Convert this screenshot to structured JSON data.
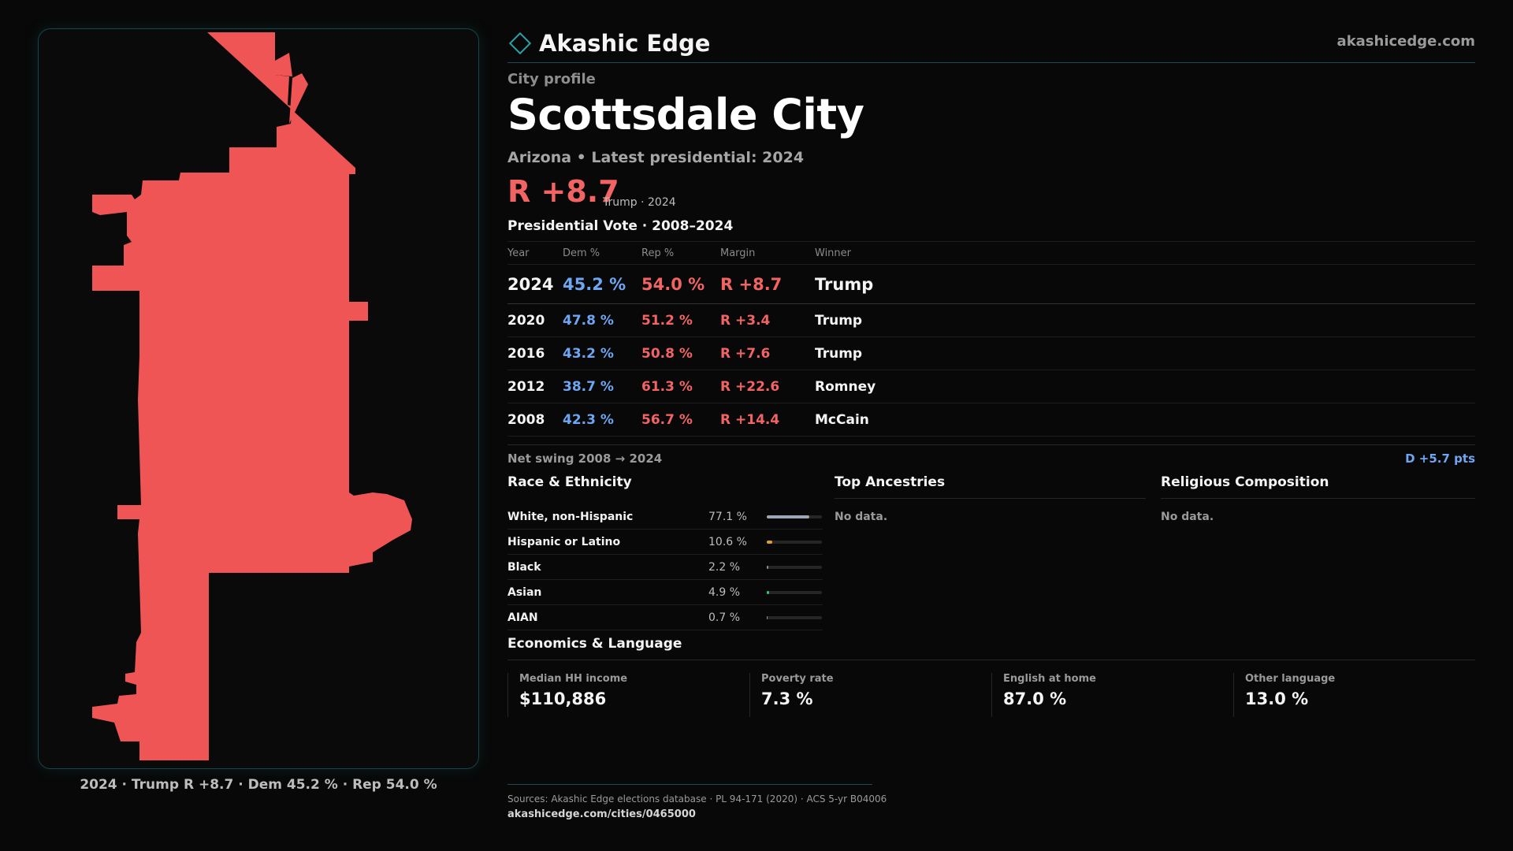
{
  "brand": {
    "name": "Akashic Edge",
    "site": "akashicedge.com",
    "icon": "diamond-icon",
    "accent": "#2aa3a8"
  },
  "profile": {
    "eyebrow": "City profile",
    "city": "Scottsdale City",
    "subtitle": "Arizona • Latest presidential: 2024",
    "margin": "R +8.7",
    "margin_note": "Trump · 2024"
  },
  "map": {
    "fill_color": "#f05555",
    "caption": "2024 · Trump R +8.7 · Dem 45.2 % · Rep 54.0 %"
  },
  "presidential": {
    "title": "Presidential Vote · 2008–2024",
    "headers": {
      "year": "Year",
      "dem": "Dem %",
      "rep": "Rep %",
      "margin": "Margin",
      "winner": "Winner"
    },
    "rows": [
      {
        "year": "2024",
        "dem": "45.2 %",
        "rep": "54.0 %",
        "margin": "R +8.7",
        "winner": "Trump"
      },
      {
        "year": "2020",
        "dem": "47.8 %",
        "rep": "51.2 %",
        "margin": "R +3.4",
        "winner": "Trump"
      },
      {
        "year": "2016",
        "dem": "43.2 %",
        "rep": "50.8 %",
        "margin": "R +7.6",
        "winner": "Trump"
      },
      {
        "year": "2012",
        "dem": "38.7 %",
        "rep": "61.3 %",
        "margin": "R +22.6",
        "winner": "Romney"
      },
      {
        "year": "2008",
        "dem": "42.3 %",
        "rep": "56.7 %",
        "margin": "R +14.4",
        "winner": "McCain"
      }
    ],
    "swing_label": "Net swing 2008 → 2024",
    "swing_value": "D +5.7 pts",
    "colors": {
      "dem": "#6ea6f2",
      "rep": "#f26464"
    }
  },
  "race": {
    "title": "Race & Ethnicity",
    "items": [
      {
        "label": "White, non-Hispanic",
        "pct": "77.1 %",
        "value": 77.1,
        "color": "#9aa7b8"
      },
      {
        "label": "Hispanic or Latino",
        "pct": "10.6 %",
        "value": 10.6,
        "color": "#e0a030"
      },
      {
        "label": "Black",
        "pct": "2.2 %",
        "value": 2.2,
        "color": "#8e8e8e"
      },
      {
        "label": "Asian",
        "pct": "4.9 %",
        "value": 4.9,
        "color": "#38c070"
      },
      {
        "label": "AIAN",
        "pct": "0.7 %",
        "value": 0.7,
        "color": "#8e8e8e"
      }
    ]
  },
  "ancestries": {
    "title": "Top Ancestries",
    "empty": "No data."
  },
  "religion": {
    "title": "Religious Composition",
    "empty": "No data."
  },
  "economics": {
    "title": "Economics & Language",
    "cells": [
      {
        "label": "Median HH income",
        "value": "$110,886"
      },
      {
        "label": "Poverty rate",
        "value": "7.3 %"
      },
      {
        "label": "English at home",
        "value": "87.0 %"
      },
      {
        "label": "Other language",
        "value": "13.0 %"
      }
    ]
  },
  "footer": {
    "sources": "Sources: Akashic Edge elections database · PL 94-171 (2020) · ACS 5-yr B04006",
    "url": "akashicedge.com/cities/0465000"
  }
}
